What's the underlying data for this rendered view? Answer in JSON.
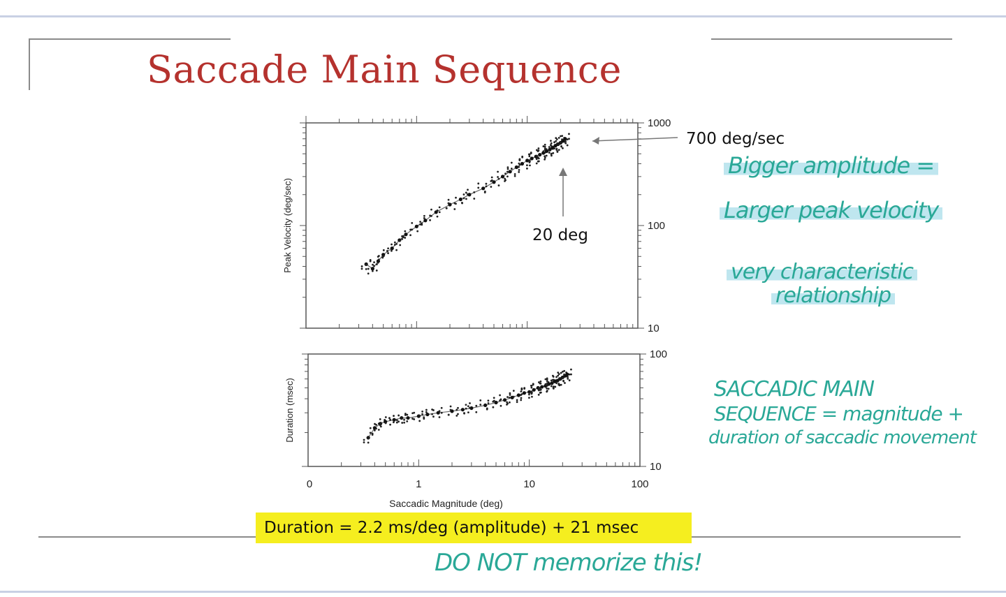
{
  "slide": {
    "title": "Saccade Main Sequence",
    "formula": "Duration = 2.2 ms/deg (amplitude) + 21 msec"
  },
  "annotations": {
    "peak_label": "700 deg/sec",
    "deg_label": "20 deg",
    "notes": [
      "Bigger amplitude =",
      "Larger peak velocity",
      "very characteristic",
      "relationship",
      "SACCADIC MAIN",
      "SEQUENCE = magnitude +",
      "duration of saccadic movement",
      "DO NOT memorize this!"
    ],
    "highlight_color": "#bfe6ef",
    "ink_color": "#2aa897"
  },
  "chart_data": [
    {
      "type": "scatter",
      "ylabel": "Peak Velocity (deg/sec)",
      "xscale": "log",
      "yscale": "log",
      "xlim": [
        0.1,
        100
      ],
      "ylim": [
        10,
        1000
      ],
      "yticks_right": [
        "1000",
        "100",
        "10"
      ],
      "series": [
        {
          "x": [
            0.35,
            0.4,
            0.45,
            0.5,
            0.6,
            0.7,
            0.8,
            1,
            1.2,
            1.5,
            2,
            2.5,
            3,
            4,
            5,
            6,
            7,
            8,
            9,
            10,
            11,
            12,
            13,
            14,
            15,
            16,
            17,
            18,
            19,
            20,
            21,
            22
          ],
          "y": [
            42,
            38,
            45,
            52,
            60,
            72,
            82,
            98,
            112,
            135,
            160,
            180,
            200,
            230,
            265,
            300,
            335,
            370,
            400,
            430,
            450,
            470,
            490,
            510,
            530,
            550,
            570,
            600,
            620,
            640,
            670,
            700
          ]
        }
      ]
    },
    {
      "type": "scatter",
      "ylabel": "Duration (msec)",
      "xlabel": "Saccadic Magnitude (deg)",
      "xscale": "log",
      "yscale": "log",
      "xlim": [
        0.1,
        100
      ],
      "ylim": [
        10,
        100
      ],
      "xticks": [
        "0",
        "1",
        "10",
        "100"
      ],
      "yticks_right": [
        "100",
        "10"
      ],
      "series": [
        {
          "x": [
            0.35,
            0.4,
            0.45,
            0.5,
            0.6,
            0.7,
            0.8,
            1,
            1.2,
            1.5,
            2,
            2.5,
            3,
            4,
            5,
            6,
            7,
            8,
            9,
            10,
            11,
            12,
            13,
            14,
            15,
            16,
            17,
            18,
            19,
            20,
            21,
            22
          ],
          "y": [
            18,
            22,
            24,
            25,
            26,
            27,
            27,
            28,
            29,
            30,
            31,
            32,
            33,
            35,
            37,
            39,
            41,
            43,
            45,
            46,
            48,
            50,
            51,
            52,
            54,
            55,
            57,
            58,
            60,
            62,
            64,
            66
          ]
        }
      ]
    }
  ]
}
